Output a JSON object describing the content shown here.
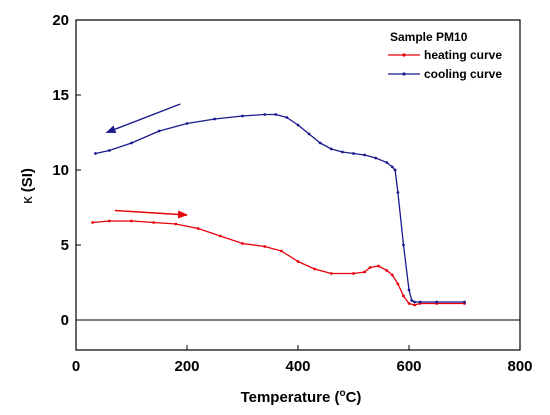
{
  "colors": {
    "heating": "#e8000b",
    "cooling": "#1a1a8c",
    "axis": "#000000"
  },
  "chart_data": {
    "type": "line",
    "title": "",
    "xlabel_text": "Temperature (",
    "xlabel_degree": "o",
    "xlabel_unit": "C)",
    "ylabel_symbol": "κ",
    "ylabel_text": "(SI)",
    "xlim": [
      0,
      800
    ],
    "ylim": [
      -2,
      20
    ],
    "x_ticks": [
      0,
      200,
      400,
      600,
      800
    ],
    "y_ticks": [
      0,
      5,
      10,
      15,
      20
    ],
    "x_tick_labels": [
      "0",
      "200",
      "400",
      "600",
      "800"
    ],
    "y_tick_labels": [
      "0",
      "5",
      "10",
      "15",
      "20"
    ],
    "zero_line": 0,
    "grid": false,
    "legend_title": "Sample PM10",
    "legend_position": "top-right",
    "series": [
      {
        "name": "heating curve",
        "color_key": "heating",
        "x": [
          30,
          60,
          100,
          140,
          180,
          220,
          260,
          300,
          340,
          370,
          400,
          430,
          460,
          500,
          520,
          530,
          545,
          560,
          570,
          580,
          590,
          600,
          610,
          620,
          650,
          700
        ],
        "y": [
          6.5,
          6.6,
          6.6,
          6.5,
          6.4,
          6.1,
          5.6,
          5.1,
          4.9,
          4.6,
          3.9,
          3.4,
          3.1,
          3.1,
          3.2,
          3.5,
          3.6,
          3.3,
          3.0,
          2.4,
          1.6,
          1.1,
          1.0,
          1.1,
          1.1,
          1.1
        ]
      },
      {
        "name": "cooling curve",
        "color_key": "cooling",
        "x": [
          700,
          650,
          620,
          610,
          605,
          600,
          590,
          580,
          575,
          570,
          560,
          540,
          520,
          500,
          480,
          460,
          440,
          420,
          400,
          380,
          360,
          340,
          300,
          250,
          200,
          150,
          100,
          60,
          35
        ],
        "y": [
          1.2,
          1.2,
          1.2,
          1.2,
          1.3,
          2.0,
          5.0,
          8.5,
          10.0,
          10.2,
          10.5,
          10.8,
          11.0,
          11.1,
          11.2,
          11.4,
          11.8,
          12.4,
          13.0,
          13.5,
          13.7,
          13.7,
          13.6,
          13.4,
          13.1,
          12.6,
          11.8,
          11.3,
          11.1
        ]
      }
    ],
    "annotations": [
      {
        "type": "arrow",
        "color_key": "cooling",
        "from": [
          188,
          14.4
        ],
        "to": [
          55,
          12.5
        ]
      },
      {
        "type": "arrow",
        "color_key": "heating",
        "from": [
          70,
          7.3
        ],
        "to": [
          200,
          7.0
        ]
      }
    ]
  }
}
